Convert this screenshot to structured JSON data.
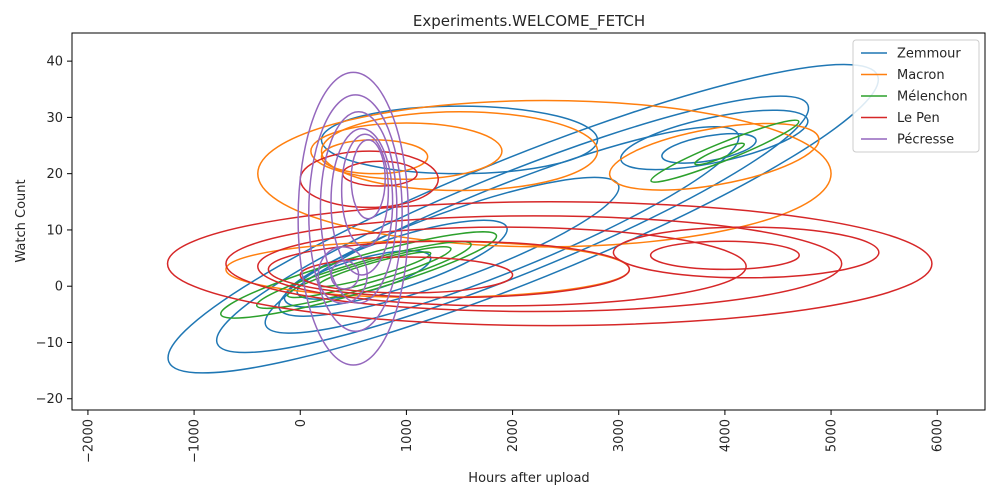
{
  "chart_data": {
    "type": "kde-contour",
    "title": "Experiments.WELCOME_FETCH",
    "xlabel": "Hours after upload",
    "ylabel": "Watch Count",
    "xlim": [
      -2150,
      6450
    ],
    "ylim": [
      -22,
      45
    ],
    "xticks": [
      -2000,
      -1000,
      0,
      1000,
      2000,
      3000,
      4000,
      5000,
      6000
    ],
    "yticks": [
      -20,
      -10,
      0,
      10,
      20,
      30,
      40
    ],
    "grid": false,
    "legend_position": "top-right",
    "series": [
      {
        "name": "Zemmour",
        "color": "#1f77b4",
        "levels": [
          {
            "cx": 2100,
            "cy": 12,
            "rx": 3600,
            "ry": 11,
            "angle_deg": 22
          },
          {
            "cx": 2000,
            "cy": 11,
            "rx": 3000,
            "ry": 9,
            "angle_deg": 22
          },
          {
            "cx": 1900,
            "cy": 10,
            "rx": 2400,
            "ry": 7.5,
            "angle_deg": 22
          },
          {
            "cx": 1400,
            "cy": 7,
            "rx": 1700,
            "ry": 6,
            "angle_deg": 20
          },
          {
            "cx": 900,
            "cy": 4,
            "rx": 1100,
            "ry": 4.5,
            "angle_deg": 18
          },
          {
            "cx": 600,
            "cy": 2,
            "rx": 650,
            "ry": 3,
            "angle_deg": 15
          },
          {
            "cx": 1500,
            "cy": 26,
            "rx": 1300,
            "ry": 6,
            "angle_deg": 0
          },
          {
            "cx": 3900,
            "cy": 26,
            "rx": 900,
            "ry": 4,
            "angle_deg": 12
          },
          {
            "cx": 3850,
            "cy": 24.5,
            "rx": 450,
            "ry": 2.2,
            "angle_deg": 10
          }
        ]
      },
      {
        "name": "Macron",
        "color": "#ff7f0e",
        "levels": [
          {
            "cx": 2300,
            "cy": 20,
            "rx": 2700,
            "ry": 13,
            "angle_deg": 0
          },
          {
            "cx": 1500,
            "cy": 24,
            "rx": 1300,
            "ry": 7,
            "angle_deg": 0
          },
          {
            "cx": 1000,
            "cy": 24,
            "rx": 900,
            "ry": 5,
            "angle_deg": 0
          },
          {
            "cx": 700,
            "cy": 23,
            "rx": 500,
            "ry": 3,
            "angle_deg": 0
          },
          {
            "cx": 1200,
            "cy": 3,
            "rx": 1900,
            "ry": 5,
            "angle_deg": 0
          },
          {
            "cx": 3900,
            "cy": 23,
            "rx": 1000,
            "ry": 5,
            "angle_deg": 10
          }
        ]
      },
      {
        "name": "Mélenchon",
        "color": "#2ca02c",
        "levels": [
          {
            "cx": 550,
            "cy": 2,
            "rx": 1350,
            "ry": 3.2,
            "angle_deg": 16
          },
          {
            "cx": 600,
            "cy": 2,
            "rx": 1050,
            "ry": 2.4,
            "angle_deg": 16
          },
          {
            "cx": 650,
            "cy": 2.5,
            "rx": 800,
            "ry": 1.8,
            "angle_deg": 16
          },
          {
            "cx": 700,
            "cy": 3,
            "rx": 550,
            "ry": 1.2,
            "angle_deg": 16
          },
          {
            "cx": 4000,
            "cy": 24,
            "rx": 750,
            "ry": 1.6,
            "angle_deg": 22
          },
          {
            "cx": 3950,
            "cy": 23.5,
            "rx": 250,
            "ry": 0.8,
            "angle_deg": 22
          }
        ]
      },
      {
        "name": "Le Pen",
        "color": "#d62728",
        "levels": [
          {
            "cx": 2350,
            "cy": 4,
            "rx": 3600,
            "ry": 11,
            "angle_deg": 0
          },
          {
            "cx": 2200,
            "cy": 4,
            "rx": 2900,
            "ry": 8.5,
            "angle_deg": 0
          },
          {
            "cx": 1900,
            "cy": 3.5,
            "rx": 2300,
            "ry": 7,
            "angle_deg": 0
          },
          {
            "cx": 1400,
            "cy": 3,
            "rx": 1700,
            "ry": 5,
            "angle_deg": 0
          },
          {
            "cx": 1000,
            "cy": 2,
            "rx": 1000,
            "ry": 3.2,
            "angle_deg": 0
          },
          {
            "cx": 4200,
            "cy": 6,
            "rx": 1250,
            "ry": 4.5,
            "angle_deg": 0
          },
          {
            "cx": 4000,
            "cy": 5.5,
            "rx": 700,
            "ry": 2.5,
            "angle_deg": 0
          },
          {
            "cx": 650,
            "cy": 19,
            "rx": 650,
            "ry": 5,
            "angle_deg": 0
          },
          {
            "cx": 750,
            "cy": 20,
            "rx": 350,
            "ry": 2.2,
            "angle_deg": 0
          }
        ]
      },
      {
        "name": "Pécresse",
        "color": "#9467bd",
        "levels": [
          {
            "cx": 500,
            "cy": 12,
            "rx": 520,
            "ry": 26,
            "angle_deg": 0
          },
          {
            "cx": 520,
            "cy": 13,
            "rx": 440,
            "ry": 21,
            "angle_deg": 0
          },
          {
            "cx": 550,
            "cy": 14,
            "rx": 360,
            "ry": 17,
            "angle_deg": 0
          },
          {
            "cx": 580,
            "cy": 15,
            "rx": 290,
            "ry": 13,
            "angle_deg": 0
          },
          {
            "cx": 610,
            "cy": 17,
            "rx": 220,
            "ry": 10,
            "angle_deg": 0
          },
          {
            "cx": 640,
            "cy": 19,
            "rx": 160,
            "ry": 7,
            "angle_deg": 0
          },
          {
            "cx": 400,
            "cy": 2,
            "rx": 230,
            "ry": 5,
            "angle_deg": 0
          },
          {
            "cx": 420,
            "cy": 2,
            "rx": 130,
            "ry": 2.5,
            "angle_deg": 0
          }
        ]
      }
    ]
  }
}
